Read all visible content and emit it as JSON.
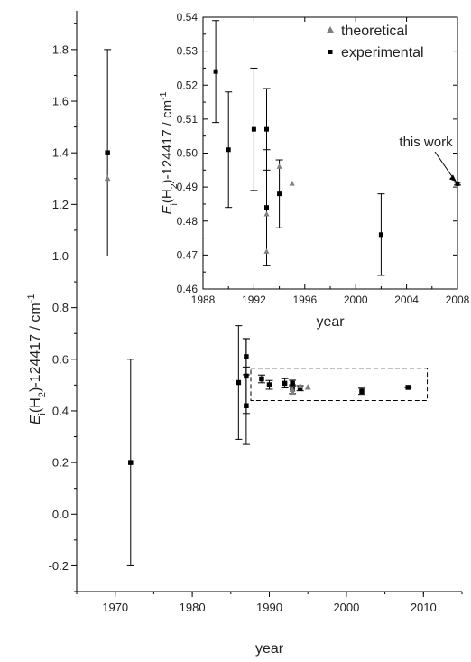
{
  "chart_data": [
    {
      "type": "scatter",
      "role": "main",
      "xlabel": "year",
      "ylabel": {
        "italic": "E",
        "sub_i": "i",
        "mid": "(H",
        "sub_2": "2",
        "rest": ")-124417 / cm",
        "sup": "-1"
      },
      "xlim": [
        1965,
        2015
      ],
      "ylim": [
        -0.3,
        1.95
      ],
      "xticks": [
        "1970",
        "1980",
        "1990",
        "2000",
        "2010"
      ],
      "yticks": [
        "-0.2",
        "0.0",
        "0.2",
        "0.4",
        "0.6",
        "0.8",
        "1.0",
        "1.2",
        "1.4",
        "1.6",
        "1.8"
      ],
      "series": [
        {
          "name": "experimental",
          "marker": "square",
          "color": "#000000",
          "points": [
            {
              "x": 1969,
              "y": 1.4,
              "err": 0.4
            },
            {
              "x": 1972,
              "y": 0.2,
              "err": 0.4
            },
            {
              "x": 1986,
              "y": 0.51,
              "err": 0.22
            },
            {
              "x": 1987,
              "y": 0.61,
              "err": 0.07
            },
            {
              "x": 1987,
              "y": 0.535,
              "err": 0.145
            },
            {
              "x": 1987,
              "y": 0.42,
              "err": 0.15
            },
            {
              "x": 1989,
              "y": 0.524,
              "err": 0.015
            },
            {
              "x": 1990,
              "y": 0.501,
              "err": 0.017
            },
            {
              "x": 1992,
              "y": 0.507,
              "err": 0.018
            },
            {
              "x": 1993,
              "y": 0.507,
              "err": 0.012
            },
            {
              "x": 1993,
              "y": 0.484,
              "err": 0.017
            },
            {
              "x": 1994,
              "y": 0.488,
              "err": 0.01
            },
            {
              "x": 2002,
              "y": 0.476,
              "err": 0.012
            },
            {
              "x": 2008,
              "y": 0.491,
              "err": 0.0004
            }
          ]
        },
        {
          "name": "theoretical",
          "marker": "triangle",
          "color": "#808080",
          "points": [
            {
              "x": 1969,
              "y": 1.3
            },
            {
              "x": 1993,
              "y": 0.482
            },
            {
              "x": 1993,
              "y": 0.471
            },
            {
              "x": 1994,
              "y": 0.496
            },
            {
              "x": 1995,
              "y": 0.491
            }
          ]
        }
      ],
      "highlight_box": {
        "x": [
          1987.6,
          2010.5
        ],
        "y": [
          0.44,
          0.565
        ],
        "style": "dashed"
      }
    },
    {
      "type": "scatter",
      "role": "inset",
      "xlabel": "year",
      "ylabel": {
        "italic": "E",
        "sub_i": "i",
        "mid": "(H",
        "sub_2": "2",
        "rest": ")-124417 / cm",
        "sup": "-1"
      },
      "xlim": [
        1988,
        2008
      ],
      "ylim": [
        0.46,
        0.54
      ],
      "xticks": [
        "1988",
        "1992",
        "1996",
        "2000",
        "2004",
        "2008"
      ],
      "yticks": [
        "0.46",
        "0.47",
        "0.48",
        "0.49",
        "0.50",
        "0.51",
        "0.52",
        "0.53",
        "0.54"
      ],
      "legend": {
        "position": "top-right",
        "entries": [
          "theoretical",
          "experimental"
        ]
      },
      "series": [
        {
          "name": "experimental",
          "marker": "square",
          "color": "#000000",
          "points": [
            {
              "x": 1989,
              "y": 0.524,
              "err": 0.015
            },
            {
              "x": 1990,
              "y": 0.501,
              "err": 0.017
            },
            {
              "x": 1992,
              "y": 0.507,
              "err": 0.018
            },
            {
              "x": 1993,
              "y": 0.507,
              "err": 0.012
            },
            {
              "x": 1993,
              "y": 0.484,
              "err": 0.017
            },
            {
              "x": 1994,
              "y": 0.488,
              "err": 0.01
            },
            {
              "x": 2002,
              "y": 0.476,
              "err": 0.012
            },
            {
              "x": 2008,
              "y": 0.491,
              "err": 0.0004
            }
          ]
        },
        {
          "name": "theoretical",
          "marker": "triangle",
          "color": "#808080",
          "points": [
            {
              "x": 1993,
              "y": 0.482
            },
            {
              "x": 1993,
              "y": 0.471
            },
            {
              "x": 1994,
              "y": 0.496
            },
            {
              "x": 1995,
              "y": 0.491
            }
          ]
        }
      ],
      "annotation": {
        "text": "this work",
        "x": 2008,
        "y": 0.491
      }
    }
  ]
}
